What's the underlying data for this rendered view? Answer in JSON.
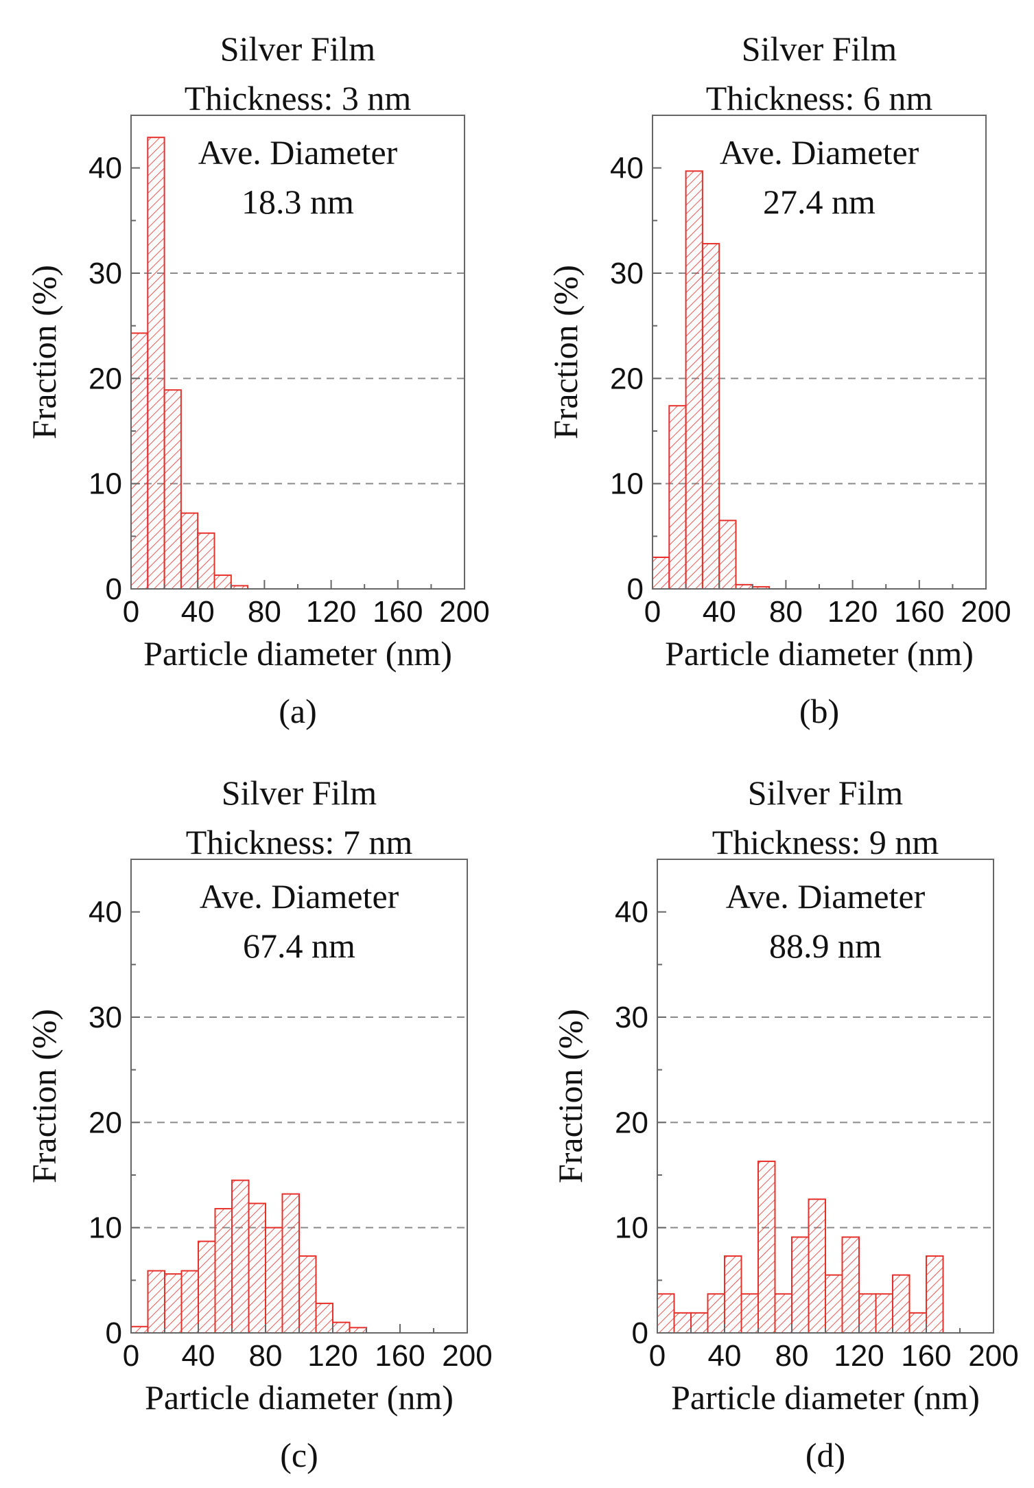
{
  "figure": {
    "x_tick_labels": [
      "0",
      "40",
      "80",
      "120",
      "160",
      "200"
    ],
    "y_tick_labels": [
      "0",
      "10",
      "20",
      "30",
      "40"
    ],
    "xlabel": "Particle diameter (nm)",
    "ylabel": "Fraction (%)",
    "colors": {
      "bar": "#e8302a",
      "grid": "#8a8a8a",
      "axis": "#666666",
      "text": "#111111"
    }
  },
  "chart_data": [
    {
      "type": "bar",
      "panel_label": "(a)",
      "title_line1": "Silver Film",
      "title_line2": "Thickness: 3 nm",
      "annotation_line1": "Ave. Diameter",
      "annotation_line2": "18.3 nm",
      "xlabel": "Particle diameter (nm)",
      "ylabel": "Fraction (%)",
      "xlim": [
        0,
        200
      ],
      "ylim": [
        0,
        45
      ],
      "x_ticks": [
        0,
        40,
        80,
        120,
        160,
        200
      ],
      "y_ticks": [
        0,
        10,
        20,
        30,
        40
      ],
      "gridlines_y": [
        10,
        20,
        30
      ],
      "bin_width": 10,
      "bin_starts": [
        0,
        10,
        20,
        30,
        40,
        50,
        60
      ],
      "values": [
        24.3,
        42.9,
        18.9,
        7.2,
        5.3,
        1.3,
        0.3
      ]
    },
    {
      "type": "bar",
      "panel_label": "(b)",
      "title_line1": "Silver Film",
      "title_line2": "Thickness: 6 nm",
      "annotation_line1": "Ave. Diameter",
      "annotation_line2": "27.4 nm",
      "xlabel": "Particle diameter (nm)",
      "ylabel": "Fraction (%)",
      "xlim": [
        0,
        200
      ],
      "ylim": [
        0,
        45
      ],
      "x_ticks": [
        0,
        40,
        80,
        120,
        160,
        200
      ],
      "y_ticks": [
        0,
        10,
        20,
        30,
        40
      ],
      "gridlines_y": [
        10,
        20,
        30
      ],
      "bin_width": 10,
      "bin_starts": [
        0,
        10,
        20,
        30,
        40,
        50,
        60
      ],
      "values": [
        3.0,
        17.4,
        39.7,
        32.8,
        6.5,
        0.4,
        0.2
      ]
    },
    {
      "type": "bar",
      "panel_label": "(c)",
      "title_line1": "Silver Film",
      "title_line2": "Thickness: 7 nm",
      "annotation_line1": "Ave. Diameter",
      "annotation_line2": "67.4 nm",
      "xlabel": "Particle diameter (nm)",
      "ylabel": "Fraction (%)",
      "xlim": [
        0,
        200
      ],
      "ylim": [
        0,
        45
      ],
      "x_ticks": [
        0,
        40,
        80,
        120,
        160,
        200
      ],
      "y_ticks": [
        0,
        10,
        20,
        30,
        40
      ],
      "gridlines_y": [
        10,
        20,
        30
      ],
      "bin_width": 10,
      "bin_starts": [
        0,
        10,
        20,
        30,
        40,
        50,
        60,
        70,
        80,
        90,
        100,
        110,
        120,
        130
      ],
      "values": [
        0.6,
        5.9,
        5.6,
        5.9,
        8.7,
        11.8,
        14.5,
        12.3,
        10.0,
        13.2,
        7.3,
        2.8,
        1.0,
        0.5
      ]
    },
    {
      "type": "bar",
      "panel_label": "(d)",
      "title_line1": "Silver Film",
      "title_line2": "Thickness: 9 nm",
      "annotation_line1": "Ave. Diameter",
      "annotation_line2": "88.9 nm",
      "xlabel": "Particle diameter (nm)",
      "ylabel": "Fraction (%)",
      "xlim": [
        0,
        200
      ],
      "ylim": [
        0,
        45
      ],
      "x_ticks": [
        0,
        40,
        80,
        120,
        160,
        200
      ],
      "y_ticks": [
        0,
        10,
        20,
        30,
        40
      ],
      "gridlines_y": [
        10,
        20,
        30
      ],
      "bin_width": 10,
      "bin_starts": [
        0,
        10,
        20,
        30,
        40,
        50,
        60,
        70,
        80,
        90,
        100,
        110,
        120,
        130,
        140,
        150,
        160
      ],
      "values": [
        3.7,
        1.9,
        1.9,
        3.7,
        7.3,
        3.7,
        16.3,
        3.7,
        9.1,
        12.7,
        5.5,
        9.1,
        3.7,
        3.7,
        5.5,
        1.9,
        7.3
      ]
    }
  ]
}
